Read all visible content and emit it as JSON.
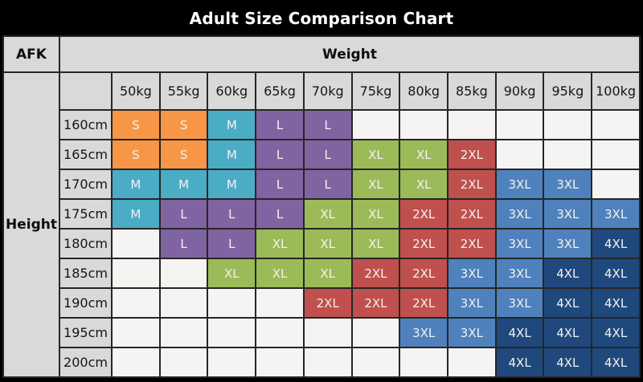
{
  "title": "Adult Size Comparison Chart",
  "corner_label": "AFK",
  "axis": {
    "weight_label": "Weight",
    "height_label": "Height"
  },
  "chart_data": {
    "type": "table",
    "title": "Adult Size Comparison Chart",
    "columns": [
      "50kg",
      "55kg",
      "60kg",
      "65kg",
      "70kg",
      "75kg",
      "80kg",
      "85kg",
      "90kg",
      "95kg",
      "100kg"
    ],
    "rows": [
      {
        "label": "160cm",
        "cells": [
          "S",
          "S",
          "M",
          "L",
          "L",
          "",
          "",
          "",
          "",
          "",
          ""
        ]
      },
      {
        "label": "165cm",
        "cells": [
          "S",
          "S",
          "M",
          "L",
          "L",
          "XL",
          "XL",
          "2XL",
          "",
          "",
          ""
        ]
      },
      {
        "label": "170cm",
        "cells": [
          "M",
          "M",
          "M",
          "L",
          "L",
          "XL",
          "XL",
          "2XL",
          "3XL",
          "3XL",
          ""
        ]
      },
      {
        "label": "175cm",
        "cells": [
          "M",
          "L",
          "L",
          "L",
          "XL",
          "XL",
          "2XL",
          "2XL",
          "3XL",
          "3XL",
          "3XL"
        ]
      },
      {
        "label": "180cm",
        "cells": [
          "",
          "L",
          "L",
          "XL",
          "XL",
          "XL",
          "2XL",
          "2XL",
          "3XL",
          "3XL",
          "4XL"
        ]
      },
      {
        "label": "185cm",
        "cells": [
          "",
          "",
          "XL",
          "XL",
          "XL",
          "2XL",
          "2XL",
          "3XL",
          "3XL",
          "4XL",
          "4XL"
        ]
      },
      {
        "label": "190cm",
        "cells": [
          "",
          "",
          "",
          "",
          "2XL",
          "2XL",
          "2XL",
          "3XL",
          "3XL",
          "4XL",
          "4XL"
        ]
      },
      {
        "label": "195cm",
        "cells": [
          "",
          "",
          "",
          "",
          "",
          "",
          "3XL",
          "3XL",
          "4XL",
          "4XL",
          "4XL"
        ]
      },
      {
        "label": "200cm",
        "cells": [
          "",
          "",
          "",
          "",
          "",
          "",
          "",
          "",
          "4XL",
          "4XL",
          "4XL"
        ]
      }
    ],
    "size_colors": {
      "S": "#F79646",
      "M": "#4BACC6",
      "L": "#8064A2",
      "XL": "#9BBB59",
      "2XL": "#C0504D",
      "3XL": "#4F81BD",
      "4XL": "#1F497D"
    }
  },
  "colors": {
    "title_bg": "#000000",
    "title_text": "#FFFFFF",
    "header_bg": "#D9D9D9",
    "empty_cell_bg": "#F5F4F2",
    "border": "#262626",
    "cell_text": "#F3F2EE"
  }
}
